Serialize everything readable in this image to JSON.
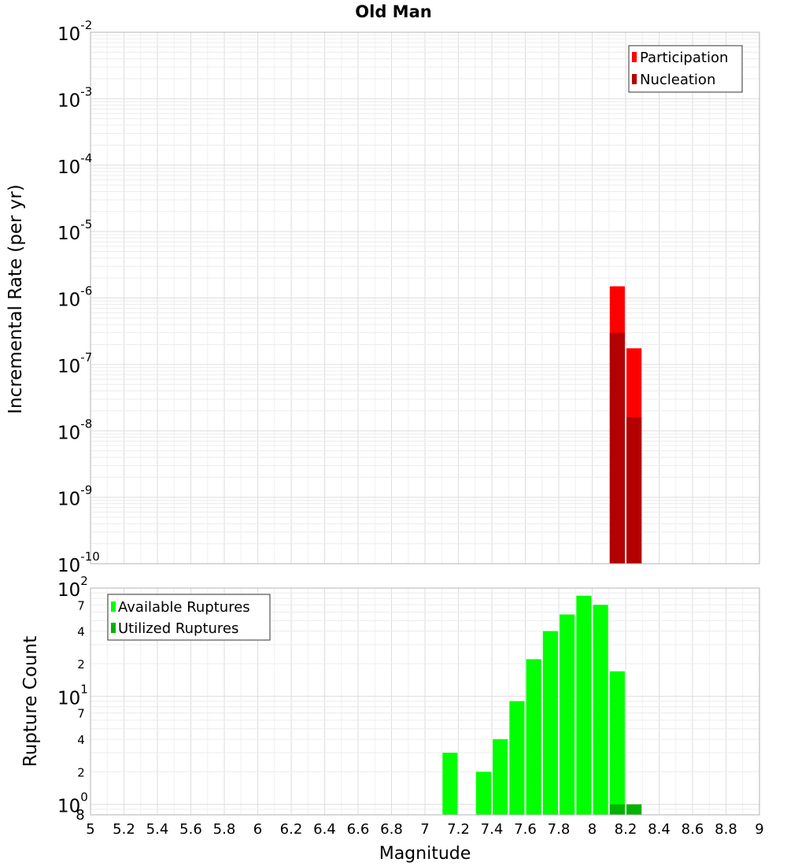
{
  "chart_data": [
    {
      "type": "bar",
      "title": "Old Man",
      "xlabel": "Magnitude",
      "ylabel": "Incremental Rate (per yr)",
      "yscale": "log",
      "ylim": [
        1e-10,
        0.01
      ],
      "xlim": [
        5,
        9
      ],
      "grid": true,
      "legend_position": "top-right",
      "y_tick_labels": [
        {
          "base": "10",
          "exp": "-2"
        },
        {
          "base": "10",
          "exp": "-3"
        },
        {
          "base": "10",
          "exp": "-4"
        },
        {
          "base": "10",
          "exp": "-5"
        },
        {
          "base": "10",
          "exp": "-6"
        },
        {
          "base": "10",
          "exp": "-7"
        },
        {
          "base": "10",
          "exp": "-8"
        },
        {
          "base": "10",
          "exp": "-9"
        },
        {
          "base": "10",
          "exp": "-10"
        }
      ],
      "series": [
        {
          "name": "Participation",
          "color": "#ff0000",
          "x": [
            8.15,
            8.25
          ],
          "values": [
            1.5e-06,
            1.75e-07
          ]
        },
        {
          "name": "Nucleation",
          "color": "#b30000",
          "x": [
            8.15,
            8.25
          ],
          "values": [
            3e-07,
            1.6e-08
          ]
        }
      ]
    },
    {
      "type": "bar",
      "xlabel": "Magnitude",
      "ylabel": "Rupture Count",
      "yscale": "log",
      "ylim": [
        0.8,
        100
      ],
      "xlim": [
        5,
        9
      ],
      "grid": true,
      "legend_position": "top-left",
      "x_tick_labels": [
        "5",
        "5.2",
        "5.4",
        "5.6",
        "5.8",
        "6",
        "6.2",
        "6.4",
        "6.6",
        "6.8",
        "7",
        "7.2",
        "7.4",
        "7.6",
        "7.8",
        "8",
        "8.2",
        "8.4",
        "8.6",
        "8.8",
        "9"
      ],
      "y_tick_labels": [
        {
          "base": "10",
          "exp": "2"
        },
        {
          "text": "7"
        },
        {
          "text": "4"
        },
        {
          "text": "2"
        },
        {
          "base": "10",
          "exp": "1"
        },
        {
          "text": "7"
        },
        {
          "text": "4"
        },
        {
          "text": "2"
        },
        {
          "base": "10",
          "exp": "0"
        },
        {
          "text": "8"
        }
      ],
      "series": [
        {
          "name": "Available Ruptures",
          "color": "#00ff00",
          "x": [
            7.15,
            7.35,
            7.45,
            7.55,
            7.65,
            7.75,
            7.85,
            7.95,
            8.05,
            8.15
          ],
          "values": [
            3,
            2,
            4,
            9,
            22,
            40,
            57,
            85,
            70,
            17
          ]
        },
        {
          "name": "Utilized Ruptures",
          "color": "#00b300",
          "x": [
            8.15,
            8.25
          ],
          "values": [
            1,
            1
          ]
        }
      ]
    }
  ]
}
